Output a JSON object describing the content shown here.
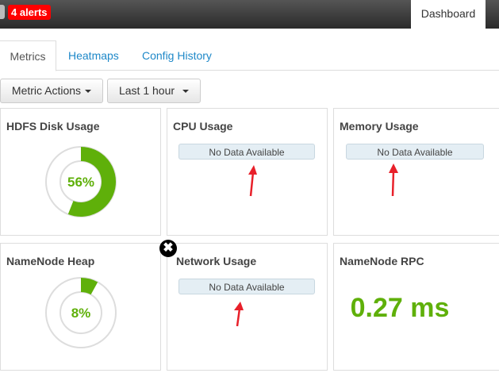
{
  "topbar": {
    "alerts_label": "4 alerts",
    "dashboard_label": "Dashboard"
  },
  "tabs": [
    {
      "label": "Metrics",
      "active": true
    },
    {
      "label": "Heatmaps"
    },
    {
      "label": "Config History"
    }
  ],
  "toolbar": {
    "metric_actions": "Metric Actions",
    "time_range": "Last 1 hour"
  },
  "widgets": [
    {
      "title": "HDFS Disk Usage",
      "percent": 56,
      "label": "56%"
    },
    {
      "title": "CPU Usage",
      "status": "No Data Available"
    },
    {
      "title": "Memory Usage",
      "status": "No Data Available"
    },
    {
      "title": "NameNode Heap",
      "percent": 8,
      "label": "8%"
    },
    {
      "title": "Network Usage",
      "status": "No Data Available"
    },
    {
      "title": "NameNode RPC",
      "value": "0.27 ms"
    }
  ],
  "colors": {
    "accent_green": "#5fb00a",
    "alert_red": "#ff0000",
    "link_blue": "#1e88c8",
    "annotation_arrow": "#e8202a"
  }
}
